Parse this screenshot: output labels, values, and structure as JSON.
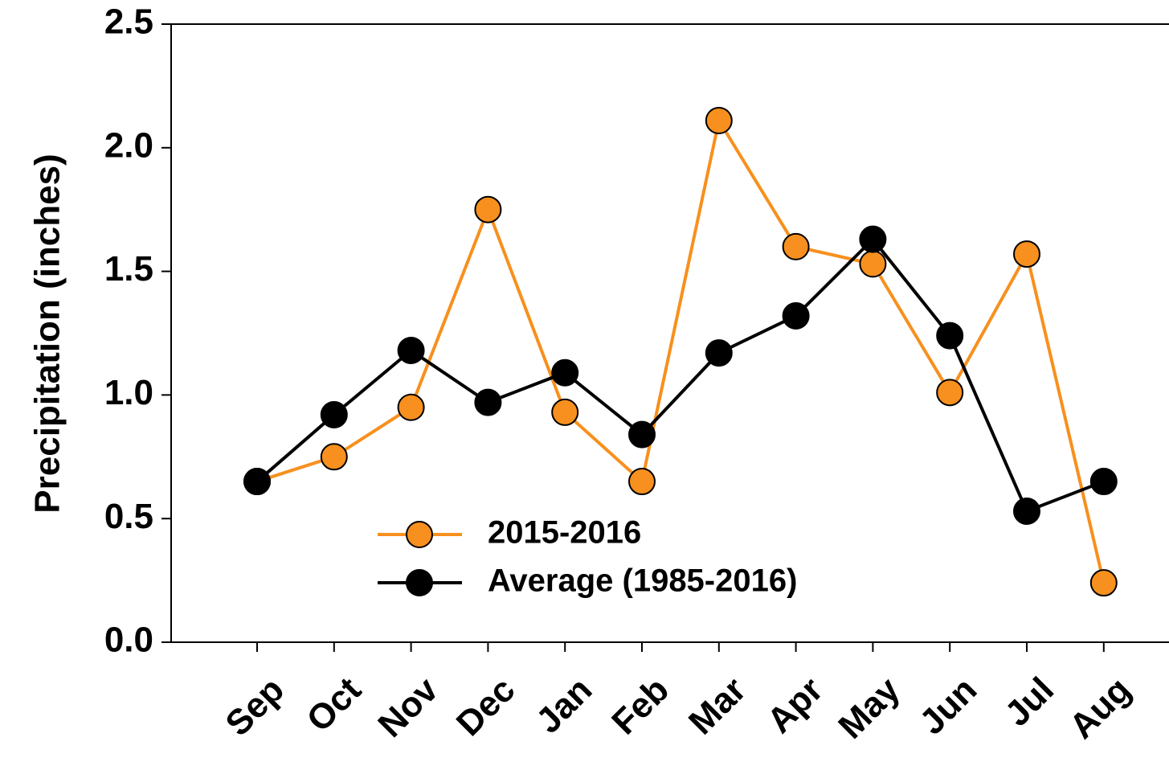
{
  "chart_data": {
    "type": "line",
    "y_label": "Precipitation (inches)",
    "categories": [
      "Sep",
      "Oct",
      "Nov",
      "Dec",
      "Jan",
      "Feb",
      "Mar",
      "Apr",
      "May",
      "Jun",
      "Jul",
      "Aug"
    ],
    "series": [
      {
        "name": "2015-2016",
        "color": "#f7901e",
        "values": [
          0.65,
          0.75,
          0.95,
          1.75,
          0.93,
          0.65,
          2.11,
          1.6,
          1.53,
          1.01,
          1.57,
          0.24
        ]
      },
      {
        "name": "Average (1985-2016)",
        "color": "#000000",
        "values": [
          0.65,
          0.92,
          1.18,
          0.97,
          1.09,
          0.84,
          1.17,
          1.32,
          1.63,
          1.24,
          0.53,
          0.65
        ]
      }
    ],
    "ylim": [
      0,
      2.5
    ],
    "yticks": [
      {
        "value": 0,
        "label": "0.0"
      },
      0.5,
      {
        "value": 1,
        "label": "1.0"
      },
      1.5,
      {
        "value": 2,
        "label": "2.0"
      },
      2.5
    ],
    "grid": false,
    "legend_position": "lower center"
  }
}
